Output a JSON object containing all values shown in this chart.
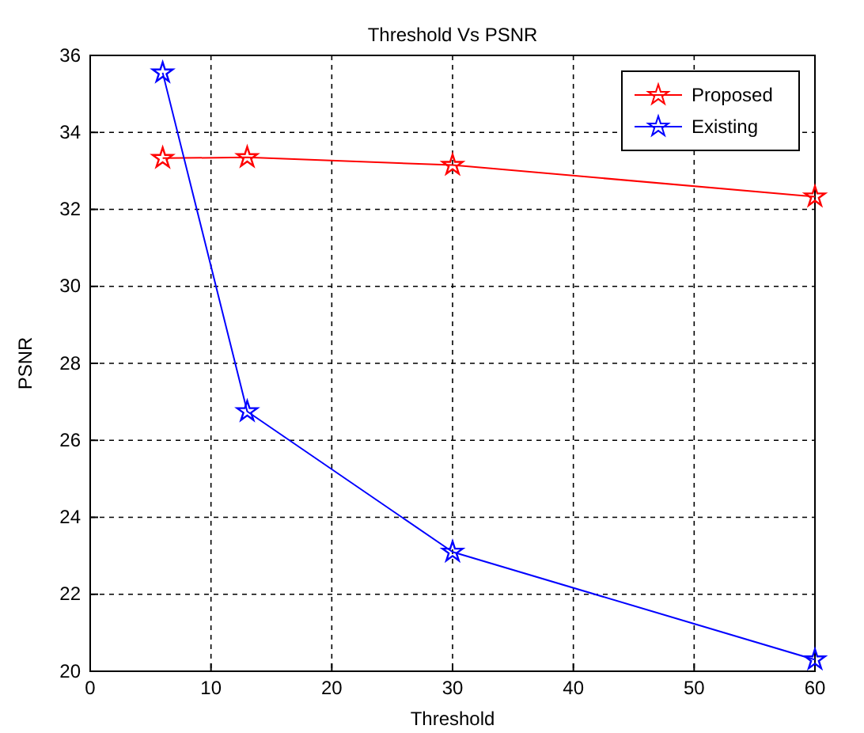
{
  "chart_data": {
    "type": "line",
    "title": "Threshold Vs PSNR",
    "xlabel": "Threshold",
    "ylabel": "PSNR",
    "x": [
      6,
      13,
      30,
      60
    ],
    "series": [
      {
        "name": "Proposed",
        "color": "#ff0000",
        "values": [
          33.33,
          33.35,
          33.15,
          32.33
        ]
      },
      {
        "name": "Existing",
        "color": "#0000ff",
        "values": [
          35.55,
          26.75,
          23.1,
          20.3
        ]
      }
    ],
    "xlim": [
      0,
      60
    ],
    "xticks": [
      0,
      10,
      20,
      30,
      40,
      50,
      60
    ],
    "ylim": [
      20,
      36
    ],
    "yticks": [
      20,
      22,
      24,
      26,
      28,
      30,
      32,
      34,
      36
    ],
    "grid": true,
    "legend": "top right",
    "marker": "star",
    "line_style": "solid"
  }
}
